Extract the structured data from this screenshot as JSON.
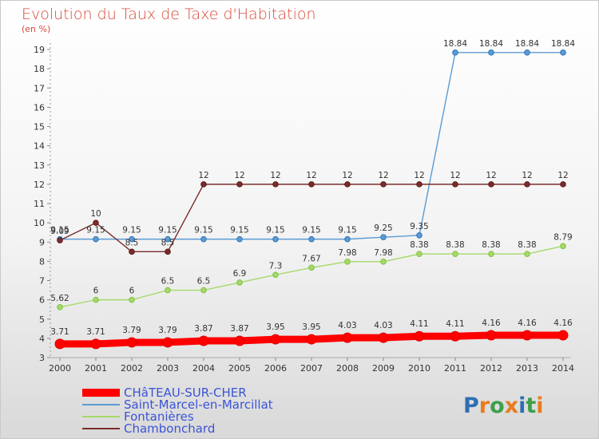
{
  "chart_data": {
    "type": "line",
    "title": "Evolution du Taux de Taxe d'Habitation",
    "subtitle": "(en %)",
    "xlabel": "",
    "ylabel": "",
    "x": [
      2000,
      2001,
      2002,
      2003,
      2004,
      2005,
      2006,
      2007,
      2008,
      2009,
      2010,
      2011,
      2012,
      2013,
      2014
    ],
    "ylim": [
      3,
      19
    ],
    "yticks": [
      3,
      4,
      5,
      6,
      7,
      8,
      9,
      10,
      11,
      12,
      13,
      14,
      15,
      16,
      17,
      18,
      19
    ],
    "grid": false,
    "legend": "bottom-left",
    "series": [
      {
        "name": "Saint-Marcel-en-Marcillat",
        "color": "#5b9bd5",
        "point_color": "#2e75b6",
        "values": [
          9.15,
          9.15,
          9.15,
          9.15,
          9.15,
          9.15,
          9.15,
          9.15,
          9.15,
          9.25,
          9.35,
          18.84,
          18.84,
          18.84,
          18.84
        ],
        "labels": [
          "9.15",
          "9.15",
          "9.15",
          "9.15",
          "9.15",
          "9.15",
          "9.15",
          "9.15",
          "9.15",
          "9.25",
          "9.35",
          "18.84",
          "18.84",
          "18.84",
          "18.84"
        ]
      },
      {
        "name": "Fontanières",
        "color": "#a6d96a",
        "point_color": "#7cc33a",
        "values": [
          5.62,
          6,
          6,
          6.5,
          6.5,
          6.9,
          7.3,
          7.67,
          7.98,
          7.98,
          8.38,
          8.38,
          8.38,
          8.38,
          8.79
        ],
        "labels": [
          "5.62",
          "6",
          "6",
          "6.5",
          "6.5",
          "6.9",
          "7.3",
          "7.67",
          "7.98",
          "7.98",
          "8.38",
          "8.38",
          "8.38",
          "8.38",
          "8.79"
        ]
      },
      {
        "name": "Chambonchard",
        "color": "#7b2c2c",
        "point_color": "#5c1a1a",
        "values": [
          9.09,
          10,
          8.5,
          8.5,
          12,
          12,
          12,
          12,
          12,
          12,
          12,
          12,
          12,
          12,
          12
        ],
        "labels": [
          "9.09",
          "10",
          "8.5",
          "8.5",
          "12",
          "12",
          "12",
          "12",
          "12",
          "12",
          "12",
          "12",
          "12",
          "12",
          "12"
        ]
      },
      {
        "name": "CHâTEAU-SUR-CHER",
        "color": "#ff0000",
        "point_color": "#e00000",
        "thick": true,
        "values": [
          3.71,
          3.71,
          3.79,
          3.79,
          3.87,
          3.87,
          3.95,
          3.95,
          4.03,
          4.03,
          4.11,
          4.11,
          4.16,
          4.16,
          4.16
        ],
        "labels": [
          "3.71",
          "3.71",
          "3.79",
          "3.79",
          "3.87",
          "3.87",
          "3.95",
          "3.95",
          "4.03",
          "4.03",
          "4.11",
          "4.11",
          "4.16",
          "4.16",
          "4.16"
        ]
      }
    ],
    "legend_order": [
      "CHâTEAU-SUR-CHER",
      "Saint-Marcel-en-Marcillat",
      "Fontanières",
      "Chambonchard"
    ]
  },
  "brand": {
    "logo": "Proxiti"
  }
}
